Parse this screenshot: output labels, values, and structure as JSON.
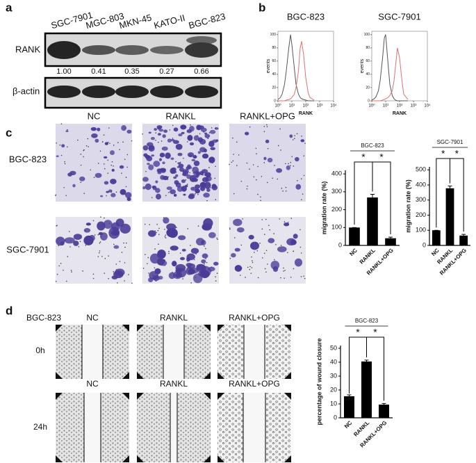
{
  "panel_labels": [
    "a",
    "b",
    "c",
    "d"
  ],
  "panel_a": {
    "lanes": [
      "SGC-7901",
      "MGC-803",
      "MKN-45",
      "KATO-II",
      "BGC-823"
    ],
    "rows": [
      "RANK",
      "β-actin"
    ],
    "ratios": [
      "1.00",
      "0.41",
      "0.35",
      "0.27",
      "0.66"
    ]
  },
  "panel_c": {
    "columns": [
      "NC",
      "RANKL",
      "RANKL+OPG"
    ],
    "rows": [
      "BGC-823",
      "SGC-7901"
    ]
  },
  "panel_d": {
    "cell_line": "BGC-823",
    "columns_0h": [
      "NC",
      "RANKL",
      "RANKL+OPG"
    ],
    "columns_24h": [
      "NC",
      "RANKL",
      "RANKL+OPG"
    ],
    "rows": [
      "0h",
      "24h"
    ]
  },
  "chart_data": [
    {
      "type": "line",
      "title": "BGC-823",
      "xlabel": "RANK",
      "ylabel": "events",
      "log_x": true,
      "x": [
        1,
        1.5,
        2,
        3,
        4,
        6,
        8,
        10,
        15,
        20,
        30,
        40,
        50,
        70,
        100,
        150,
        200,
        400
      ],
      "series": [
        {
          "color": "#555555",
          "values": [
            2,
            5,
            10,
            25,
            45,
            80,
            100,
            85,
            50,
            25,
            10,
            5,
            3,
            2,
            1,
            0,
            0,
            0
          ]
        },
        {
          "color": "#e07070",
          "values": [
            0,
            0,
            0,
            0,
            1,
            2,
            3,
            5,
            10,
            20,
            45,
            80,
            90,
            70,
            35,
            12,
            5,
            1
          ]
        }
      ],
      "xlim": [
        1,
        10000
      ],
      "xticks": [
        {
          "value": 1,
          "label": "10⁰"
        },
        {
          "value": 10,
          "label": "10¹"
        },
        {
          "value": 100,
          "label": "10²"
        },
        {
          "value": 1000,
          "label": "10³"
        },
        {
          "value": 10000,
          "label": "10⁴"
        }
      ],
      "ylim": [
        0,
        105
      ],
      "yticks": [
        0,
        20,
        40,
        60,
        80,
        100
      ]
    },
    {
      "type": "line",
      "title": "SGC-7901",
      "xlabel": "RANK",
      "ylabel": "events",
      "log_x": true,
      "x": [
        1,
        1.5,
        2,
        3,
        4,
        6,
        8,
        10,
        15,
        20,
        30,
        40,
        50,
        70,
        100,
        150,
        200,
        400
      ],
      "series": [
        {
          "color": "#555555",
          "values": [
            1,
            3,
            6,
            15,
            30,
            65,
            95,
            100,
            55,
            25,
            8,
            3,
            1,
            0,
            0,
            0,
            0,
            0
          ]
        },
        {
          "color": "#e07070",
          "values": [
            0,
            0,
            0,
            0,
            0,
            1,
            2,
            3,
            5,
            8,
            15,
            30,
            50,
            80,
            65,
            30,
            10,
            2
          ]
        }
      ],
      "xlim": [
        1,
        10000
      ],
      "xticks": [
        {
          "value": 1,
          "label": "10⁰"
        },
        {
          "value": 10,
          "label": "10¹"
        },
        {
          "value": 100,
          "label": "10²"
        },
        {
          "value": 1000,
          "label": "10³"
        },
        {
          "value": 10000,
          "label": "10⁴"
        }
      ],
      "ylim": [
        0,
        105
      ],
      "yticks": [
        0,
        20,
        40,
        60,
        80,
        100
      ]
    },
    {
      "type": "bar",
      "title": "BGC-823",
      "ylabel": "migration rate (%)",
      "categories": [
        "NC",
        "RANKL",
        "RANKL+OPG"
      ],
      "values": [
        100,
        268,
        40
      ],
      "errors": [
        0,
        18,
        6
      ],
      "color": "#000000",
      "ylim": [
        0,
        420
      ],
      "yticks": [
        0,
        100,
        200,
        300,
        400
      ],
      "annotations": [
        "*",
        "*"
      ]
    },
    {
      "type": "bar",
      "title": "SGC-7901",
      "ylabel": "migration rate (%)",
      "categories": [
        "NC",
        "RANKL",
        "RANKL+OPG"
      ],
      "values": [
        100,
        378,
        65
      ],
      "errors": [
        0,
        15,
        8
      ],
      "color": "#000000",
      "ylim": [
        0,
        520
      ],
      "yticks": [
        0,
        100,
        200,
        300,
        400,
        500
      ],
      "annotations": [
        "*",
        "*"
      ]
    },
    {
      "type": "bar",
      "title": "BGC-823",
      "ylabel": "percentage of wound closure",
      "categories": [
        "NC",
        "RANKL",
        "RANKL+OPG"
      ],
      "values": [
        15.5,
        40.5,
        9.5
      ],
      "errors": [
        1,
        1,
        0.8
      ],
      "color": "#000000",
      "ylim": [
        0,
        52
      ],
      "yticks": [
        0,
        10,
        20,
        30,
        40,
        50
      ],
      "annotations": [
        "*",
        "*"
      ]
    }
  ]
}
